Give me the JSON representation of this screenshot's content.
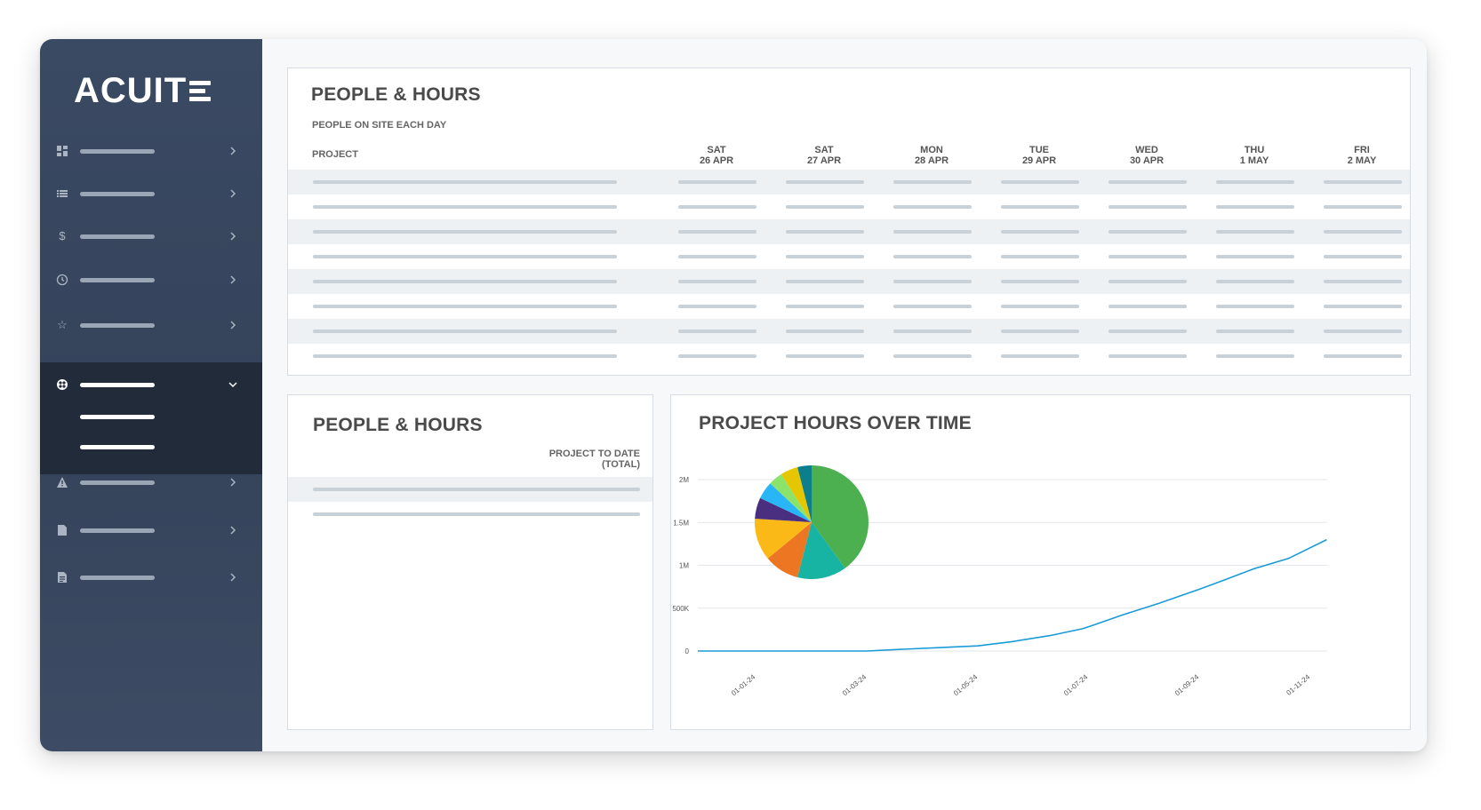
{
  "sidebar": {
    "logo_text": "ACUIT",
    "items": [
      {
        "icon": "dashboard-icon",
        "expanded": false
      },
      {
        "icon": "list-icon",
        "expanded": false
      },
      {
        "icon": "dollar-icon",
        "expanded": false
      },
      {
        "icon": "clock-icon",
        "expanded": false
      },
      {
        "icon": "star-icon",
        "expanded": false
      },
      {
        "icon": "globe-icon",
        "expanded": true,
        "sub_items": 2
      },
      {
        "icon": "warning-icon",
        "expanded": false
      },
      {
        "icon": "file-icon",
        "expanded": false
      },
      {
        "icon": "document-icon",
        "expanded": false
      }
    ]
  },
  "top_panel": {
    "title": "PEOPLE & HOURS",
    "subtitle": "PEOPLE ON SITE EACH DAY",
    "project_col": "PROJECT",
    "days": [
      {
        "day": "SAT",
        "date": "26 APR"
      },
      {
        "day": "SAT",
        "date": "27 APR"
      },
      {
        "day": "MON",
        "date": "28 APR"
      },
      {
        "day": "TUE",
        "date": "29 APR"
      },
      {
        "day": "WED",
        "date": "30 APR"
      },
      {
        "day": "THU",
        "date": "1 MAY"
      },
      {
        "day": "FRI",
        "date": "2 MAY"
      }
    ]
  },
  "left_panel": {
    "title": "PEOPLE & HOURS",
    "subtitle": "PROJECT TO DATE (TOTAL)"
  },
  "right_panel": {
    "title": "PROJECT HOURS OVER TIME"
  },
  "chart_data": [
    {
      "type": "line",
      "title": "PROJECT HOURS OVER TIME",
      "x_tick_labels": [
        "01-01-24",
        "01-03-24",
        "01-05-24",
        "01-07-24",
        "01-09-24",
        "01-11-24"
      ],
      "y_tick_labels": [
        "0",
        "500K",
        "1M",
        "1.5M",
        "2M"
      ],
      "ylim": [
        0,
        2000000
      ],
      "color": "#1a9bd7",
      "x": [
        "2024-01-01",
        "2024-01-20",
        "2024-02-10",
        "2024-03-01",
        "2024-03-20",
        "2024-04-15",
        "2024-05-01",
        "2024-05-20",
        "2024-06-10",
        "2024-06-28",
        "2024-07-05",
        "2024-07-20",
        "2024-08-10",
        "2024-09-01",
        "2024-09-15",
        "2024-10-01",
        "2024-10-20",
        "2024-11-10"
      ],
      "values": [
        0,
        0,
        0,
        0,
        20000,
        45000,
        60000,
        110000,
        180000,
        260000,
        310000,
        420000,
        560000,
        720000,
        830000,
        960000,
        1080000,
        1300000
      ]
    },
    {
      "type": "pie",
      "slices": [
        {
          "value": 40,
          "color": "#4caf50"
        },
        {
          "value": 14,
          "color": "#17b3a3"
        },
        {
          "value": 10,
          "color": "#ec7622"
        },
        {
          "value": 12,
          "color": "#fbb917"
        },
        {
          "value": 6,
          "color": "#4a2f80"
        },
        {
          "value": 5,
          "color": "#29b6f6"
        },
        {
          "value": 4,
          "color": "#8be36b"
        },
        {
          "value": 5,
          "color": "#e5c600"
        },
        {
          "value": 4,
          "color": "#0b7f8c"
        }
      ]
    }
  ]
}
